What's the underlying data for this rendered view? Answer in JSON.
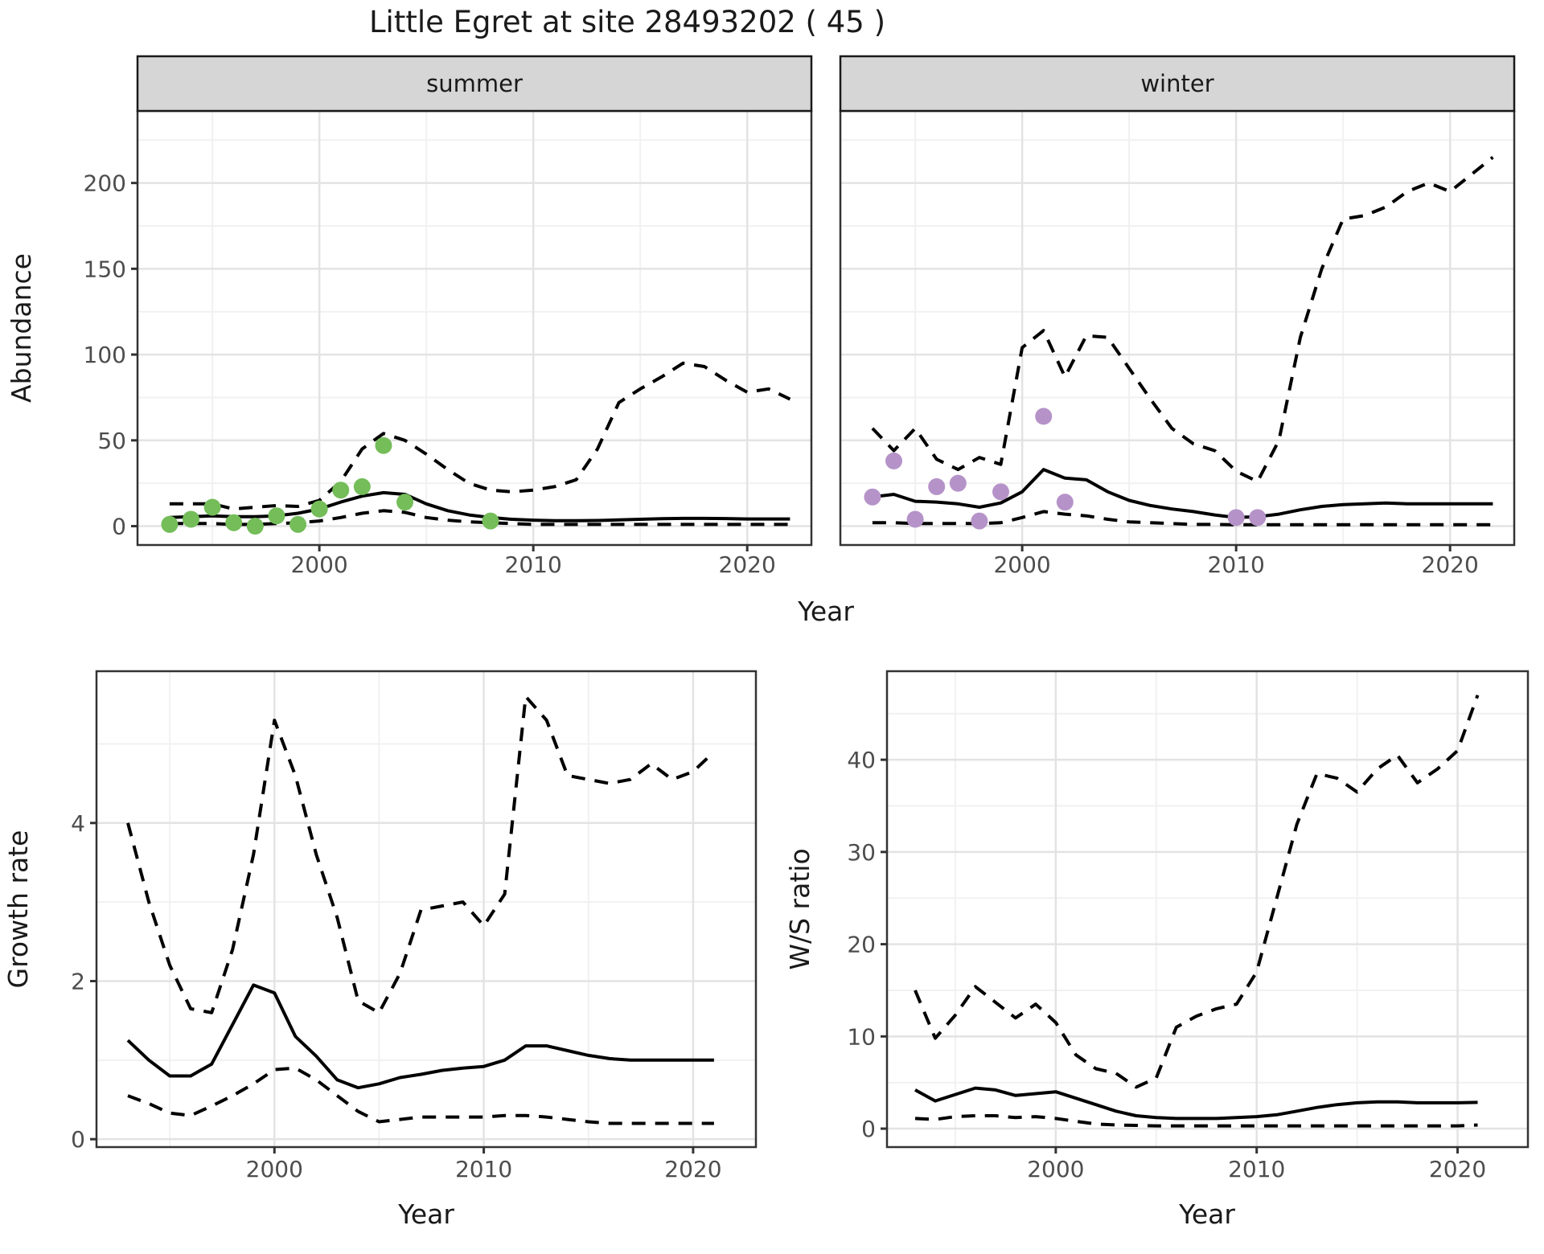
{
  "title": "Little Egret at site 28493202 ( 45 )",
  "colors": {
    "summer_points": "#74bd59",
    "winter_points": "#b593c8",
    "line": "#000000",
    "strip_fill": "#d6d6d6",
    "strip_border": "#1a1a1a",
    "panel_border": "#333333",
    "grid_major": "#e3e3e3",
    "grid_minor": "#f1f1f1",
    "tick_text": "#4d4d4d",
    "axis_title_text": "#1a1a1a"
  },
  "chart_data": [
    {
      "id": "abundance-summer",
      "type": "line",
      "facet_label": "summer",
      "xlabel": "Year",
      "ylabel": "Abundance",
      "xlim": [
        1991.5,
        2023
      ],
      "ylim": [
        -11,
        242
      ],
      "x_ticks": {
        "values": [
          2000,
          2010,
          2020
        ],
        "labels": [
          "2000",
          "2010",
          "2020"
        ]
      },
      "x_minor": [
        1995,
        2005,
        2015
      ],
      "y_ticks": {
        "values": [
          0,
          50,
          100,
          150,
          200
        ],
        "labels": [
          "0",
          "50",
          "100",
          "150",
          "200"
        ]
      },
      "y_minor": [
        25,
        75,
        125,
        175,
        225
      ],
      "grid": true,
      "legend": "none",
      "x": [
        1993,
        1994,
        1995,
        1996,
        1997,
        1998,
        1999,
        2000,
        2001,
        2002,
        2003,
        2004,
        2005,
        2006,
        2007,
        2008,
        2009,
        2010,
        2011,
        2012,
        2013,
        2014,
        2015,
        2016,
        2017,
        2018,
        2019,
        2020,
        2021,
        2022
      ],
      "series": [
        {
          "name": "fitted",
          "style": "solid",
          "y": [
            5,
            5.5,
            6,
            5.5,
            5.5,
            6,
            7.5,
            10,
            14,
            17.5,
            19.5,
            18.5,
            13,
            9,
            6.5,
            5,
            4,
            3.5,
            3.2,
            3.2,
            3.3,
            3.6,
            4,
            4.3,
            4.5,
            4.5,
            4.4,
            4.2,
            4.2,
            4.2
          ]
        },
        {
          "name": "ci_upper",
          "style": "dashed",
          "y": [
            13,
            13,
            13,
            10,
            11,
            12,
            11.5,
            15,
            26,
            45,
            54,
            50,
            42,
            33,
            25,
            21,
            20,
            21,
            23,
            27,
            45,
            72,
            80,
            87,
            95,
            93,
            85,
            78,
            80,
            74
          ]
        },
        {
          "name": "ci_lower",
          "style": "dashed",
          "y": [
            1.5,
            1.5,
            1.5,
            1,
            1,
            1.5,
            2,
            3,
            5,
            7.5,
            9,
            8,
            5,
            3.5,
            2.5,
            2,
            1.5,
            1,
            1,
            1,
            1,
            1,
            1,
            1,
            1,
            1,
            1,
            1,
            1,
            1
          ]
        }
      ],
      "points": {
        "name": "observed_counts",
        "color_key": "summer_points",
        "x": [
          1993,
          1994,
          1995,
          1996,
          1997,
          1998,
          1999,
          2000,
          2001,
          2002,
          2003,
          2004,
          2008
        ],
        "y": [
          1,
          4,
          11,
          2,
          0,
          6,
          1,
          10,
          21,
          23,
          47,
          14,
          3
        ]
      }
    },
    {
      "id": "abundance-winter",
      "type": "line",
      "facet_label": "winter",
      "xlabel": "",
      "ylabel": "",
      "xlim": [
        1991.5,
        2023
      ],
      "ylim": [
        -11,
        242
      ],
      "x_ticks": {
        "values": [
          2000,
          2010,
          2020
        ],
        "labels": [
          "2000",
          "2010",
          "2020"
        ]
      },
      "x_minor": [
        1995,
        2005,
        2015
      ],
      "y_ticks": {
        "values": [],
        "labels": []
      },
      "y_minor": [
        25,
        75,
        125,
        175,
        225
      ],
      "y_major_grid": [
        0,
        50,
        100,
        150,
        200
      ],
      "grid": true,
      "legend": "none",
      "x": [
        1993,
        1994,
        1995,
        1996,
        1997,
        1998,
        1999,
        2000,
        2001,
        2002,
        2003,
        2004,
        2005,
        2006,
        2007,
        2008,
        2009,
        2010,
        2011,
        2012,
        2013,
        2014,
        2015,
        2016,
        2017,
        2018,
        2019,
        2020,
        2021,
        2022
      ],
      "series": [
        {
          "name": "fitted",
          "style": "solid",
          "y": [
            17,
            18.5,
            14.5,
            14,
            13,
            11,
            13.5,
            20,
            33,
            28,
            27,
            20,
            15,
            12,
            10,
            8.5,
            6.5,
            5,
            5.5,
            7,
            9.5,
            11.5,
            12.5,
            13,
            13.5,
            13,
            13,
            13,
            13,
            13
          ]
        },
        {
          "name": "ci_upper",
          "style": "dashed",
          "y": [
            57,
            44,
            57,
            39,
            33,
            40,
            36,
            104,
            114,
            87,
            111,
            110,
            92,
            74,
            57,
            48,
            44,
            32,
            26,
            50,
            110,
            150,
            179,
            181,
            186,
            195,
            200,
            195,
            205,
            215
          ]
        },
        {
          "name": "ci_lower",
          "style": "dashed",
          "y": [
            2,
            2,
            1.5,
            1.5,
            1.5,
            1.5,
            2,
            5,
            8.5,
            7,
            6,
            4,
            2.5,
            2,
            1.5,
            1,
            1,
            0.8,
            0.8,
            0.8,
            0.8,
            0.8,
            0.8,
            0.8,
            0.8,
            0.8,
            0.8,
            0.8,
            0.8,
            0.8
          ]
        }
      ],
      "points": {
        "name": "observed_counts",
        "color_key": "winter_points",
        "x": [
          1993,
          1994,
          1995,
          1996,
          1997,
          1998,
          1999,
          2001,
          2002,
          2010,
          2011
        ],
        "y": [
          17,
          38,
          4,
          23,
          25,
          3,
          20,
          64,
          14,
          5,
          5
        ]
      }
    },
    {
      "id": "growth-rate",
      "type": "line",
      "facet_label": "",
      "xlabel": "Year",
      "ylabel": "Growth rate",
      "xlim": [
        1991.5,
        2023
      ],
      "ylim": [
        -0.1,
        5.92
      ],
      "x_ticks": {
        "values": [
          2000,
          2010,
          2020
        ],
        "labels": [
          "2000",
          "2010",
          "2020"
        ]
      },
      "x_minor": [
        1995,
        2005,
        2015
      ],
      "y_ticks": {
        "values": [
          0,
          2,
          4
        ],
        "labels": [
          "0",
          "2",
          "4"
        ]
      },
      "y_minor": [
        1,
        3,
        5
      ],
      "grid": true,
      "legend": "none",
      "x": [
        1993,
        1994,
        1995,
        1996,
        1997,
        1998,
        1999,
        2000,
        2001,
        2002,
        2003,
        2004,
        2005,
        2006,
        2007,
        2008,
        2009,
        2010,
        2011,
        2012,
        2013,
        2014,
        2015,
        2016,
        2017,
        2018,
        2019,
        2020,
        2021
      ],
      "series": [
        {
          "name": "fitted",
          "style": "solid",
          "y": [
            1.25,
            1.0,
            0.8,
            0.8,
            0.95,
            1.45,
            1.95,
            1.85,
            1.3,
            1.05,
            0.75,
            0.65,
            0.7,
            0.78,
            0.82,
            0.87,
            0.9,
            0.92,
            1.0,
            1.18,
            1.18,
            1.12,
            1.06,
            1.02,
            1.0,
            1.0,
            1.0,
            1.0,
            1.0
          ]
        },
        {
          "name": "ci_upper",
          "style": "dashed",
          "y": [
            4.0,
            3.0,
            2.2,
            1.65,
            1.6,
            2.4,
            3.6,
            5.3,
            4.6,
            3.6,
            2.8,
            1.75,
            1.6,
            2.1,
            2.9,
            2.95,
            3.0,
            2.7,
            3.1,
            5.6,
            5.3,
            4.6,
            4.55,
            4.5,
            4.55,
            4.75,
            4.55,
            4.65,
            4.9
          ]
        },
        {
          "name": "ci_lower",
          "style": "dashed",
          "y": [
            0.55,
            0.45,
            0.33,
            0.3,
            0.42,
            0.55,
            0.7,
            0.88,
            0.9,
            0.75,
            0.55,
            0.35,
            0.22,
            0.25,
            0.28,
            0.28,
            0.28,
            0.28,
            0.3,
            0.3,
            0.28,
            0.25,
            0.22,
            0.2,
            0.2,
            0.2,
            0.2,
            0.2,
            0.2
          ]
        }
      ],
      "points": null
    },
    {
      "id": "ws-ratio",
      "type": "line",
      "facet_label": "",
      "xlabel": "Year",
      "ylabel": "W/S ratio",
      "xlim": [
        1991.6,
        2023.5
      ],
      "ylim": [
        -2,
        49.6
      ],
      "x_ticks": {
        "values": [
          2000,
          2010,
          2020
        ],
        "labels": [
          "2000",
          "2010",
          "2020"
        ]
      },
      "x_minor": [
        1995,
        2005,
        2015
      ],
      "y_ticks": {
        "values": [
          0,
          10,
          20,
          30,
          40
        ],
        "labels": [
          "0",
          "10",
          "20",
          "30",
          "40"
        ]
      },
      "y_minor": [
        5,
        15,
        25,
        35,
        45
      ],
      "grid": true,
      "legend": "none",
      "x": [
        1993,
        1994,
        1995,
        1996,
        1997,
        1998,
        1999,
        2000,
        2001,
        2002,
        2003,
        2004,
        2005,
        2006,
        2007,
        2008,
        2009,
        2010,
        2011,
        2012,
        2013,
        2014,
        2015,
        2016,
        2017,
        2018,
        2019,
        2020,
        2021
      ],
      "series": [
        {
          "name": "fitted",
          "style": "solid",
          "y": [
            4.2,
            3.0,
            3.7,
            4.4,
            4.2,
            3.6,
            3.8,
            4.0,
            3.3,
            2.6,
            1.9,
            1.4,
            1.2,
            1.1,
            1.1,
            1.1,
            1.2,
            1.3,
            1.5,
            1.9,
            2.3,
            2.6,
            2.8,
            2.9,
            2.9,
            2.8,
            2.8,
            2.8,
            2.85
          ]
        },
        {
          "name": "ci_upper",
          "style": "dashed",
          "y": [
            15,
            9.8,
            12.3,
            15.4,
            13.7,
            12,
            13.5,
            11.5,
            8,
            6.5,
            6,
            4.5,
            5.5,
            11,
            12.2,
            13,
            13.5,
            17,
            25,
            33,
            38.5,
            38,
            36.5,
            39,
            40.5,
            37.5,
            39,
            41,
            47
          ]
        },
        {
          "name": "ci_lower",
          "style": "dashed",
          "y": [
            1.1,
            1.0,
            1.3,
            1.4,
            1.4,
            1.2,
            1.3,
            1.1,
            0.8,
            0.5,
            0.4,
            0.35,
            0.3,
            0.3,
            0.3,
            0.3,
            0.3,
            0.3,
            0.3,
            0.3,
            0.3,
            0.3,
            0.3,
            0.3,
            0.3,
            0.3,
            0.3,
            0.3,
            0.4
          ]
        }
      ],
      "points": null
    }
  ]
}
